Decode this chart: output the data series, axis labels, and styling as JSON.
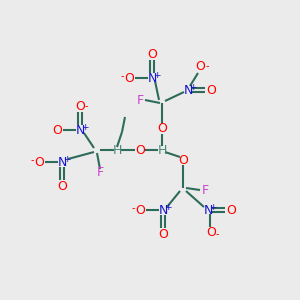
{
  "bg_color": "#ebebeb",
  "bond_color": "#2d6b5a",
  "atom_colors": {
    "O": "#ff0000",
    "N": "#1414cc",
    "F": "#cc44cc",
    "H": "#4a8878",
    "plus": "#1414cc",
    "minus": "#ff0000"
  },
  "figsize": [
    3.0,
    3.0
  ],
  "dpi": 100
}
